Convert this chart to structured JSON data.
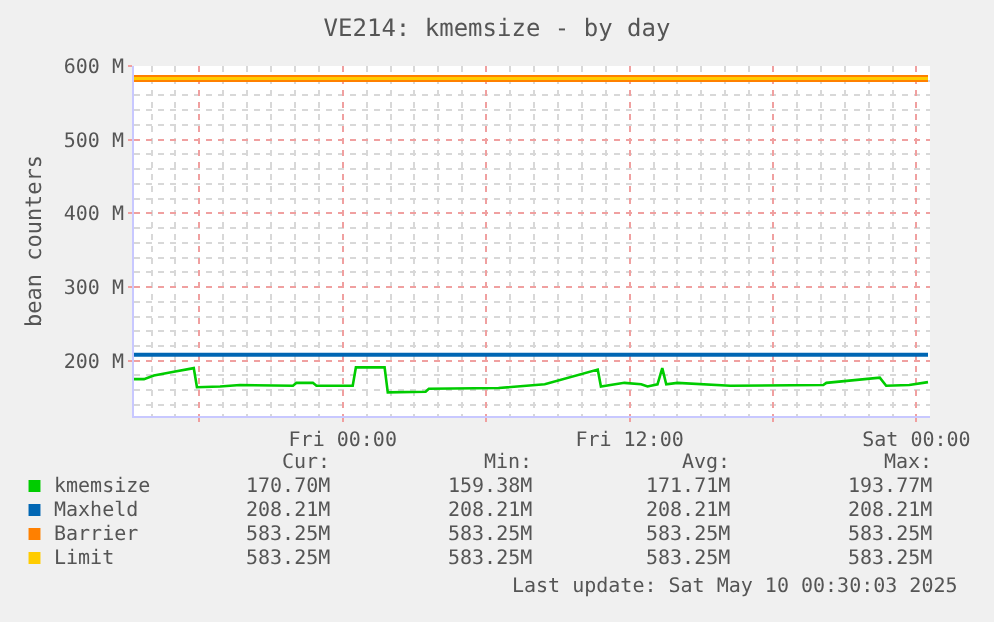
{
  "chart_data": {
    "type": "line",
    "title": "VE214: kmemsize - by day",
    "ylabel": "bean counters",
    "x": [
      "2025-05-08T15:16",
      "2025-05-08T15:41",
      "2025-05-08T16:06",
      "2025-05-08T16:56",
      "2025-05-08T17:46",
      "2025-05-08T17:54",
      "2025-05-08T18:52",
      "2025-05-08T19:42",
      "2025-05-08T21:55",
      "2025-05-08T22:04",
      "2025-05-08T22:45",
      "2025-05-08T22:54",
      "2025-05-09T00:25",
      "2025-05-09T00:33",
      "2025-05-09T01:45",
      "2025-05-09T01:53",
      "2025-05-09T03:28",
      "2025-05-09T03:36",
      "2025-05-09T06:31",
      "2025-05-09T08:27",
      "2025-05-09T10:40",
      "2025-05-09T10:48",
      "2025-05-09T11:47",
      "2025-05-09T12:29",
      "2025-05-09T12:45",
      "2025-05-09T13:10",
      "2025-05-09T13:22",
      "2025-05-09T13:32",
      "2025-05-09T14:00",
      "2025-05-09T16:13",
      "2025-05-09T20:06",
      "2025-05-09T20:14",
      "2025-05-09T22:28",
      "2025-05-09T22:44",
      "2025-05-09T23:42",
      "2025-05-10T00:29"
    ],
    "series": [
      {
        "name": "kmemsize",
        "color": "#00cc00",
        "values": [
          175,
          175,
          180,
          185,
          190,
          164,
          165,
          167,
          166,
          170,
          170,
          166,
          166,
          191,
          191,
          157,
          158,
          162,
          163,
          168,
          188,
          165,
          170,
          168,
          165,
          168,
          190,
          168,
          170,
          166,
          167,
          170,
          177,
          166,
          167,
          171
        ]
      },
      {
        "name": "Maxheld",
        "color": "#0066b3",
        "values": [
          208,
          208,
          208,
          208,
          208,
          208,
          208,
          208,
          208,
          208,
          208,
          208,
          208,
          208,
          208,
          208,
          208,
          208,
          208,
          208,
          208,
          208,
          208,
          208,
          208,
          208,
          208,
          208,
          208,
          208,
          208,
          208,
          208,
          208,
          208,
          208
        ]
      },
      {
        "name": "Barrier",
        "color": "#ff8000",
        "values": [
          583,
          583,
          583,
          583,
          583,
          583,
          583,
          583,
          583,
          583,
          583,
          583,
          583,
          583,
          583,
          583,
          583,
          583,
          583,
          583,
          583,
          583,
          583,
          583,
          583,
          583,
          583,
          583,
          583,
          583,
          583,
          583,
          583,
          583,
          583,
          583
        ]
      },
      {
        "name": "Limit",
        "color": "#ffcc00",
        "values": [
          583,
          583,
          583,
          583,
          583,
          583,
          583,
          583,
          583,
          583,
          583,
          583,
          583,
          583,
          583,
          583,
          583,
          583,
          583,
          583,
          583,
          583,
          583,
          583,
          583,
          583,
          583,
          583,
          583,
          583,
          583,
          583,
          583,
          583,
          583,
          583
        ]
      }
    ],
    "xlim": [
      "2025-05-08T15:16",
      "2025-05-10T00:34"
    ],
    "ylim": [
      125,
      600
    ],
    "xticks": [
      {
        "value": "2025-05-08T18:00",
        "label": null
      },
      {
        "value": "2025-05-09T00:00",
        "label": "Fri 00:00"
      },
      {
        "value": "2025-05-09T06:00",
        "label": null
      },
      {
        "value": "2025-05-09T12:00",
        "label": "Fri 12:00"
      },
      {
        "value": "2025-05-09T18:00",
        "label": null
      },
      {
        "value": "2025-05-10T00:00",
        "label": "Sat 00:00"
      }
    ],
    "yticks": [
      {
        "value": 200,
        "label": "200 M"
      },
      {
        "value": 300,
        "label": "300 M"
      },
      {
        "value": 400,
        "label": "400 M"
      },
      {
        "value": 500,
        "label": "500 M"
      },
      {
        "value": 600,
        "label": "600 M"
      }
    ],
    "grid": true,
    "legend": "bottom left",
    "marker": "none",
    "line_style": "solid",
    "annotations": [
      "Cur:",
      "Min:",
      "Avg:",
      "Max:",
      "170.70M",
      "159.38M",
      "171.71M",
      "193.77M",
      "208.21M",
      "208.21M",
      "208.21M",
      "208.21M",
      "583.25M",
      "583.25M",
      "583.25M",
      "583.25M",
      "583.25M",
      "583.25M",
      "583.25M",
      "583.25M",
      "Last update: Sat May 10 00:30:03 2025"
    ]
  }
}
